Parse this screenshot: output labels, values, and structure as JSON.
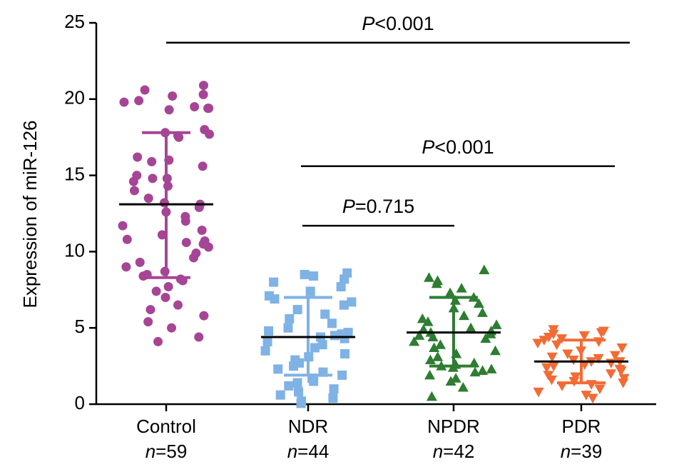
{
  "chart_data": {
    "type": "scatter",
    "ylabel": "Expression of miR-126",
    "ylim": [
      0,
      25
    ],
    "yticks": [
      "0",
      "5",
      "10",
      "15",
      "20",
      "25"
    ],
    "groups": [
      {
        "name": "Control",
        "n_label": "=59",
        "color": "#a64595",
        "marker": "circle",
        "mean": 13.1,
        "sd_upper": 17.8,
        "sd_lower": 8.3,
        "values": [
          20.9,
          20.6,
          20.3,
          20.2,
          19.9,
          19.8,
          19.5,
          19.4,
          19.4,
          19.3,
          18.0,
          17.8,
          17.7,
          17.6,
          17.5,
          16.2,
          16.0,
          15.9,
          15.6,
          15.0,
          14.8,
          14.8,
          14.6,
          14.3,
          14.0,
          13.5,
          13.2,
          13.1,
          12.9,
          12.6,
          12.3,
          12.0,
          11.7,
          11.4,
          11.1,
          10.8,
          10.7,
          10.6,
          10.5,
          10.3,
          9.9,
          9.6,
          9.3,
          9.0,
          8.7,
          8.5,
          8.4,
          8.2,
          8.1,
          7.7,
          7.4,
          7.0,
          6.5,
          6.2,
          5.8,
          5.4,
          5.0,
          4.4,
          4.1
        ]
      },
      {
        "name": "NDR",
        "n_label": "=44",
        "color": "#7fb2e5",
        "marker": "square",
        "mean": 4.4,
        "sd_upper": 7.0,
        "sd_lower": 1.9,
        "values": [
          8.6,
          8.5,
          8.4,
          8.2,
          8.0,
          7.7,
          7.4,
          7.1,
          6.9,
          6.7,
          6.5,
          6.2,
          5.9,
          5.6,
          5.3,
          5.0,
          4.8,
          4.7,
          4.6,
          4.5,
          4.4,
          4.3,
          4.1,
          3.9,
          3.7,
          3.5,
          3.3,
          3.1,
          2.9,
          2.7,
          2.5,
          2.3,
          2.1,
          1.9,
          1.7,
          1.5,
          1.4,
          1.2,
          1.0,
          0.8,
          0.6,
          0.4,
          0.2,
          0.05
        ]
      },
      {
        "name": "NPDR",
        "n_label": "=42",
        "color": "#2e7d32",
        "marker": "triangle-up",
        "mean": 4.7,
        "sd_upper": 7.0,
        "sd_lower": 2.5,
        "values": [
          8.8,
          8.3,
          8.1,
          7.9,
          7.6,
          7.3,
          7.0,
          6.8,
          6.6,
          6.3,
          6.0,
          5.8,
          5.6,
          5.4,
          5.2,
          5.0,
          4.9,
          4.8,
          4.7,
          4.6,
          4.5,
          4.4,
          4.3,
          4.1,
          3.9,
          3.7,
          3.5,
          3.3,
          3.1,
          2.9,
          2.7,
          2.6,
          2.5,
          2.4,
          2.3,
          2.2,
          2.1,
          1.9,
          1.7,
          1.5,
          1.1,
          0.5
        ]
      },
      {
        "name": "PDR",
        "n_label": "=39",
        "color": "#f26b35",
        "marker": "triangle-down",
        "mean": 2.8,
        "sd_upper": 4.2,
        "sd_lower": 1.4,
        "values": [
          4.9,
          4.8,
          4.7,
          4.6,
          4.5,
          4.4,
          4.3,
          4.2,
          4.1,
          4.0,
          3.9,
          3.7,
          3.5,
          3.3,
          3.2,
          3.1,
          3.0,
          2.9,
          2.8,
          2.8,
          2.7,
          2.6,
          2.5,
          2.4,
          2.3,
          2.2,
          2.0,
          1.9,
          1.8,
          1.7,
          1.6,
          1.5,
          1.4,
          1.3,
          1.2,
          1.0,
          0.8,
          0.6,
          0.4
        ]
      }
    ],
    "comparisons": [
      {
        "from": "Control",
        "to": "PDR",
        "y": 23.7,
        "p_prefix": "P",
        "p_rest": "<0.001"
      },
      {
        "from": "NDR",
        "to": "PDR",
        "y": 15.6,
        "p_prefix": "P",
        "p_rest": "<0.001"
      },
      {
        "from": "NDR",
        "to": "NPDR",
        "y": 11.7,
        "p_prefix": "P",
        "p_rest": "=0.715"
      }
    ],
    "n_prefix": "n"
  }
}
